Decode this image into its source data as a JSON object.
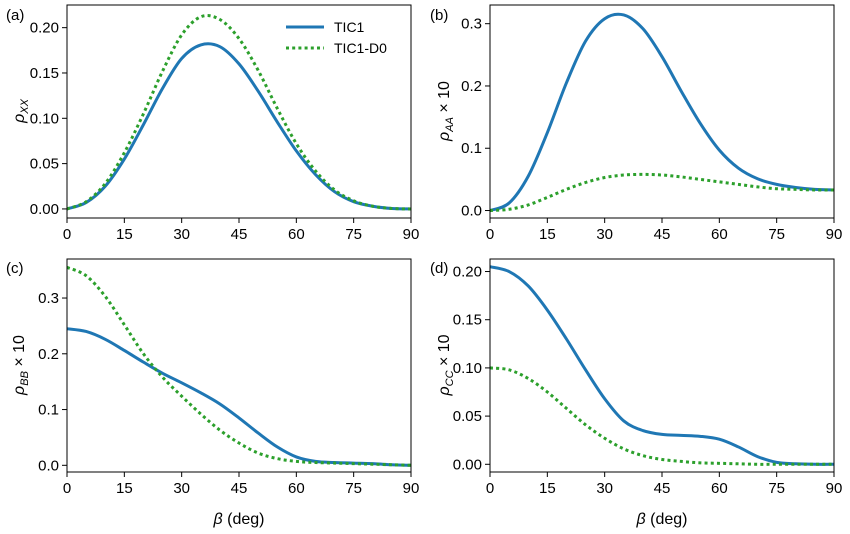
{
  "figure": {
    "legend": {
      "placement": "top-right of panel (a)",
      "entries": [
        {
          "label": "TIC1",
          "color": "#1f77b4",
          "style": "solid"
        },
        {
          "label": "TIC1-D0",
          "color": "#2ca02c",
          "style": "dotted"
        }
      ]
    }
  },
  "chart_data": [
    {
      "type": "line",
      "panel": "(a)",
      "ylabel": "ρ_XX",
      "xlabel": "",
      "xlim": [
        0,
        90
      ],
      "ylim": [
        -0.01,
        0.225
      ],
      "xticks": [
        0,
        15,
        30,
        45,
        60,
        75,
        90
      ],
      "yticks": [
        0.0,
        0.05,
        0.1,
        0.15,
        0.2
      ],
      "ytick_labels": [
        "0.00",
        "0.05",
        "0.10",
        "0.15",
        "0.20"
      ],
      "x": [
        0,
        5,
        10,
        15,
        20,
        25,
        30,
        35,
        40,
        45,
        50,
        55,
        60,
        65,
        70,
        75,
        80,
        85,
        90
      ],
      "series": [
        {
          "name": "TIC1",
          "values": [
            0.0,
            0.007,
            0.025,
            0.055,
            0.093,
            0.133,
            0.166,
            0.181,
            0.179,
            0.16,
            0.13,
            0.096,
            0.064,
            0.038,
            0.019,
            0.008,
            0.003,
            0.0005,
            0.0
          ]
        },
        {
          "name": "TIC1-D0",
          "values": [
            0.0,
            0.008,
            0.028,
            0.062,
            0.105,
            0.152,
            0.192,
            0.212,
            0.209,
            0.188,
            0.153,
            0.111,
            0.072,
            0.042,
            0.021,
            0.009,
            0.003,
            0.0005,
            0.0
          ]
        }
      ]
    },
    {
      "type": "line",
      "panel": "(b)",
      "ylabel": "ρ_AA × 10",
      "xlabel": "",
      "xlim": [
        0,
        90
      ],
      "ylim": [
        -0.012,
        0.33
      ],
      "xticks": [
        0,
        15,
        30,
        45,
        60,
        75,
        90
      ],
      "yticks": [
        0.0,
        0.1,
        0.2,
        0.3
      ],
      "ytick_labels": [
        "0.0",
        "0.1",
        "0.2",
        "0.3"
      ],
      "x": [
        0,
        5,
        10,
        15,
        20,
        25,
        30,
        35,
        40,
        45,
        50,
        55,
        60,
        65,
        70,
        75,
        80,
        85,
        90
      ],
      "series": [
        {
          "name": "TIC1",
          "values": [
            0.0,
            0.012,
            0.055,
            0.125,
            0.205,
            0.272,
            0.308,
            0.314,
            0.292,
            0.247,
            0.192,
            0.14,
            0.097,
            0.068,
            0.051,
            0.042,
            0.037,
            0.034,
            0.033
          ]
        },
        {
          "name": "TIC1-D0",
          "values": [
            0.0,
            0.002,
            0.009,
            0.021,
            0.034,
            0.045,
            0.053,
            0.057,
            0.058,
            0.057,
            0.054,
            0.05,
            0.046,
            0.042,
            0.038,
            0.035,
            0.034,
            0.033,
            0.033
          ]
        }
      ]
    },
    {
      "type": "line",
      "panel": "(c)",
      "ylabel": "ρ_BB × 10",
      "xlabel": "β (deg)",
      "xlim": [
        0,
        90
      ],
      "ylim": [
        -0.012,
        0.37
      ],
      "xticks": [
        0,
        15,
        30,
        45,
        60,
        75,
        90
      ],
      "yticks": [
        0.0,
        0.1,
        0.2,
        0.3
      ],
      "ytick_labels": [
        "0.0",
        "0.1",
        "0.2",
        "0.3"
      ],
      "x": [
        0,
        5,
        10,
        15,
        20,
        25,
        30,
        35,
        40,
        45,
        50,
        55,
        60,
        65,
        70,
        75,
        80,
        85,
        90
      ],
      "series": [
        {
          "name": "TIC1",
          "values": [
            0.245,
            0.24,
            0.226,
            0.206,
            0.185,
            0.165,
            0.148,
            0.13,
            0.11,
            0.085,
            0.058,
            0.033,
            0.015,
            0.007,
            0.005,
            0.004,
            0.003,
            0.001,
            0.0
          ]
        },
        {
          "name": "TIC1-D0",
          "values": [
            0.355,
            0.34,
            0.303,
            0.252,
            0.2,
            0.158,
            0.124,
            0.092,
            0.063,
            0.04,
            0.022,
            0.012,
            0.007,
            0.005,
            0.004,
            0.003,
            0.002,
            0.001,
            0.0
          ]
        }
      ]
    },
    {
      "type": "line",
      "panel": "(d)",
      "ylabel": "ρ_CC × 10",
      "xlabel": "β (deg)",
      "xlim": [
        0,
        90
      ],
      "ylim": [
        -0.008,
        0.213
      ],
      "xticks": [
        0,
        15,
        30,
        45,
        60,
        75,
        90
      ],
      "yticks": [
        0.0,
        0.05,
        0.1,
        0.15,
        0.2
      ],
      "ytick_labels": [
        "0.00",
        "0.05",
        "0.10",
        "0.15",
        "0.20"
      ],
      "x": [
        0,
        5,
        10,
        15,
        20,
        25,
        30,
        35,
        40,
        45,
        50,
        55,
        60,
        65,
        70,
        75,
        80,
        85,
        90
      ],
      "series": [
        {
          "name": "TIC1",
          "values": [
            0.205,
            0.2,
            0.185,
            0.16,
            0.13,
            0.098,
            0.068,
            0.045,
            0.035,
            0.031,
            0.03,
            0.029,
            0.026,
            0.018,
            0.008,
            0.002,
            0.0005,
            0.0,
            0.0
          ]
        },
        {
          "name": "TIC1-D0",
          "values": [
            0.1,
            0.098,
            0.089,
            0.075,
            0.058,
            0.041,
            0.027,
            0.016,
            0.009,
            0.005,
            0.003,
            0.0015,
            0.001,
            0.0005,
            0.0,
            0.0,
            0.0,
            0.0,
            0.0
          ]
        }
      ]
    }
  ]
}
